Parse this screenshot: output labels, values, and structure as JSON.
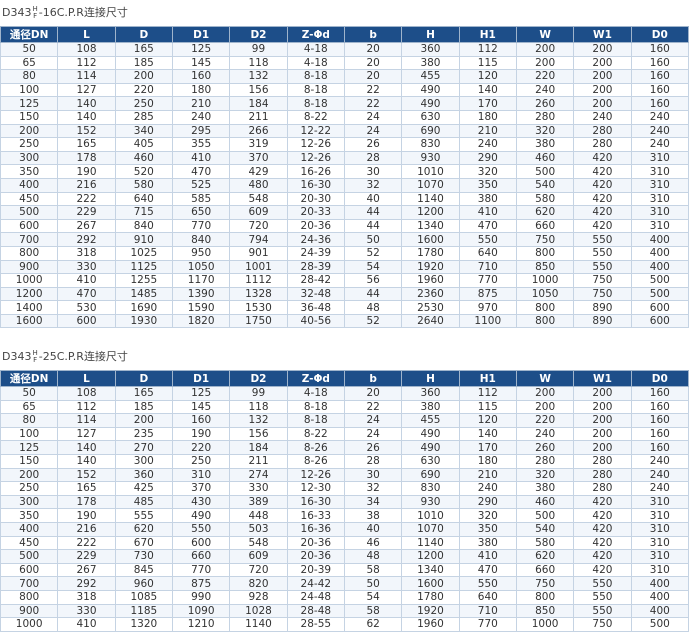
{
  "sections": [
    {
      "title": {
        "prefix": "D343",
        "upper": "H",
        "lower": "F",
        "suffix": "-16C.P.R连接尺寸"
      },
      "table": {
        "headers": [
          "通径DN",
          "L",
          "D",
          "D1",
          "D2",
          "Z-Φd",
          "b",
          "H",
          "H1",
          "W",
          "W1",
          "D0"
        ],
        "rows": [
          [
            "50",
            "108",
            "165",
            "125",
            "99",
            "4-18",
            "20",
            "360",
            "112",
            "200",
            "200",
            "160"
          ],
          [
            "65",
            "112",
            "185",
            "145",
            "118",
            "4-18",
            "20",
            "380",
            "115",
            "200",
            "200",
            "160"
          ],
          [
            "80",
            "114",
            "200",
            "160",
            "132",
            "8-18",
            "20",
            "455",
            "120",
            "220",
            "200",
            "160"
          ],
          [
            "100",
            "127",
            "220",
            "180",
            "156",
            "8-18",
            "22",
            "490",
            "140",
            "240",
            "200",
            "160"
          ],
          [
            "125",
            "140",
            "250",
            "210",
            "184",
            "8-18",
            "22",
            "490",
            "170",
            "260",
            "200",
            "160"
          ],
          [
            "150",
            "140",
            "285",
            "240",
            "211",
            "8-22",
            "24",
            "630",
            "180",
            "280",
            "240",
            "240"
          ],
          [
            "200",
            "152",
            "340",
            "295",
            "266",
            "12-22",
            "24",
            "690",
            "210",
            "320",
            "280",
            "240"
          ],
          [
            "250",
            "165",
            "405",
            "355",
            "319",
            "12-26",
            "26",
            "830",
            "240",
            "380",
            "280",
            "240"
          ],
          [
            "300",
            "178",
            "460",
            "410",
            "370",
            "12-26",
            "28",
            "930",
            "290",
            "460",
            "420",
            "310"
          ],
          [
            "350",
            "190",
            "520",
            "470",
            "429",
            "16-26",
            "30",
            "1010",
            "320",
            "500",
            "420",
            "310"
          ],
          [
            "400",
            "216",
            "580",
            "525",
            "480",
            "16-30",
            "32",
            "1070",
            "350",
            "540",
            "420",
            "310"
          ],
          [
            "450",
            "222",
            "640",
            "585",
            "548",
            "20-30",
            "40",
            "1140",
            "380",
            "580",
            "420",
            "310"
          ],
          [
            "500",
            "229",
            "715",
            "650",
            "609",
            "20-33",
            "44",
            "1200",
            "410",
            "620",
            "420",
            "310"
          ],
          [
            "600",
            "267",
            "840",
            "770",
            "720",
            "20-36",
            "44",
            "1340",
            "470",
            "660",
            "420",
            "310"
          ],
          [
            "700",
            "292",
            "910",
            "840",
            "794",
            "24-36",
            "50",
            "1600",
            "550",
            "750",
            "550",
            "400"
          ],
          [
            "800",
            "318",
            "1025",
            "950",
            "901",
            "24-39",
            "52",
            "1780",
            "640",
            "800",
            "550",
            "400"
          ],
          [
            "900",
            "330",
            "1125",
            "1050",
            "1001",
            "28-39",
            "54",
            "1920",
            "710",
            "850",
            "550",
            "400"
          ],
          [
            "1000",
            "410",
            "1255",
            "1170",
            "1112",
            "28-42",
            "56",
            "1960",
            "770",
            "1000",
            "750",
            "500"
          ],
          [
            "1200",
            "470",
            "1485",
            "1390",
            "1328",
            "32-48",
            "44",
            "2360",
            "875",
            "1050",
            "750",
            "500"
          ],
          [
            "1400",
            "530",
            "1690",
            "1590",
            "1530",
            "36-48",
            "48",
            "2530",
            "970",
            "800",
            "890",
            "600"
          ],
          [
            "1600",
            "600",
            "1930",
            "1820",
            "1750",
            "40-56",
            "52",
            "2640",
            "1100",
            "800",
            "890",
            "600"
          ]
        ]
      }
    },
    {
      "title": {
        "prefix": "D343",
        "upper": "H",
        "lower": "F",
        "suffix": "-25C.P.R连接尺寸"
      },
      "table": {
        "headers": [
          "通径DN",
          "L",
          "D",
          "D1",
          "D2",
          "Z-Φd",
          "b",
          "H",
          "H1",
          "W",
          "W1",
          "D0"
        ],
        "rows": [
          [
            "50",
            "108",
            "165",
            "125",
            "99",
            "4-18",
            "20",
            "360",
            "112",
            "200",
            "200",
            "160"
          ],
          [
            "65",
            "112",
            "185",
            "145",
            "118",
            "8-18",
            "22",
            "380",
            "115",
            "200",
            "200",
            "160"
          ],
          [
            "80",
            "114",
            "200",
            "160",
            "132",
            "8-18",
            "24",
            "455",
            "120",
            "220",
            "200",
            "160"
          ],
          [
            "100",
            "127",
            "235",
            "190",
            "156",
            "8-22",
            "24",
            "490",
            "140",
            "240",
            "200",
            "160"
          ],
          [
            "125",
            "140",
            "270",
            "220",
            "184",
            "8-26",
            "26",
            "490",
            "170",
            "260",
            "200",
            "160"
          ],
          [
            "150",
            "140",
            "300",
            "250",
            "211",
            "8-26",
            "28",
            "630",
            "180",
            "280",
            "280",
            "240"
          ],
          [
            "200",
            "152",
            "360",
            "310",
            "274",
            "12-26",
            "30",
            "690",
            "210",
            "320",
            "280",
            "240"
          ],
          [
            "250",
            "165",
            "425",
            "370",
            "330",
            "12-30",
            "32",
            "830",
            "240",
            "380",
            "280",
            "240"
          ],
          [
            "300",
            "178",
            "485",
            "430",
            "389",
            "16-30",
            "34",
            "930",
            "290",
            "460",
            "420",
            "310"
          ],
          [
            "350",
            "190",
            "555",
            "490",
            "448",
            "16-33",
            "38",
            "1010",
            "320",
            "500",
            "420",
            "310"
          ],
          [
            "400",
            "216",
            "620",
            "550",
            "503",
            "16-36",
            "40",
            "1070",
            "350",
            "540",
            "420",
            "310"
          ],
          [
            "450",
            "222",
            "670",
            "600",
            "548",
            "20-36",
            "46",
            "1140",
            "380",
            "580",
            "420",
            "310"
          ],
          [
            "500",
            "229",
            "730",
            "660",
            "609",
            "20-36",
            "48",
            "1200",
            "410",
            "620",
            "420",
            "310"
          ],
          [
            "600",
            "267",
            "845",
            "770",
            "720",
            "20-39",
            "58",
            "1340",
            "470",
            "660",
            "420",
            "310"
          ],
          [
            "700",
            "292",
            "960",
            "875",
            "820",
            "24-42",
            "50",
            "1600",
            "550",
            "750",
            "550",
            "400"
          ],
          [
            "800",
            "318",
            "1085",
            "990",
            "928",
            "24-48",
            "54",
            "1780",
            "640",
            "800",
            "550",
            "400"
          ],
          [
            "900",
            "330",
            "1185",
            "1090",
            "1028",
            "28-48",
            "58",
            "1920",
            "710",
            "850",
            "550",
            "400"
          ],
          [
            "1000",
            "410",
            "1320",
            "1210",
            "1140",
            "28-55",
            "62",
            "1960",
            "770",
            "1000",
            "750",
            "500"
          ]
        ]
      }
    }
  ]
}
